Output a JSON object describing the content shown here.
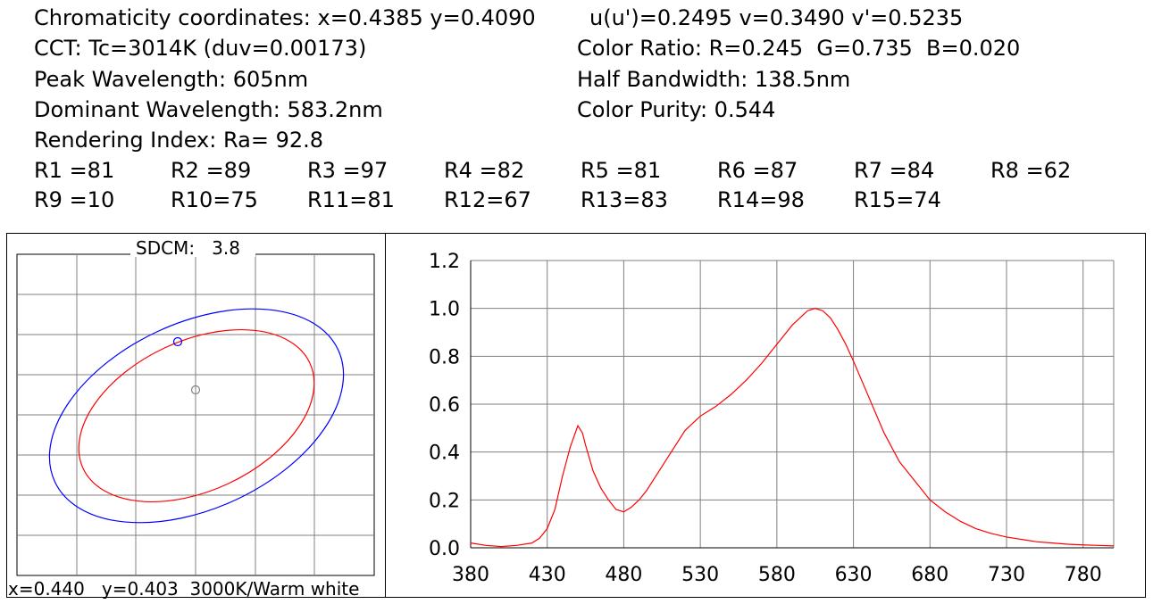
{
  "info": {
    "chromaticity": "Chromaticity coordinates: x=0.4385 y=0.4090",
    "uv": "u(u')=0.2495 v=0.3490 v'=0.5235",
    "cct": "CCT: Tc=3014K (duv=0.00173)",
    "color_ratio": "Color Ratio: R=0.245  G=0.735  B=0.020",
    "peak": "Peak Wavelength: 605nm",
    "half_bw": "Half Bandwidth: 138.5nm",
    "dominant": "Dominant Wavelength: 583.2nm",
    "purity": "Color Purity: 0.544",
    "ra": "Rendering Index: Ra= 92.8"
  },
  "rendering_indices": [
    [
      "R1 =81",
      "R2 =89",
      "R3 =97",
      "R4 =82",
      "R5 =81",
      "R6 =87",
      "R7 =84",
      "R8 =62"
    ],
    [
      "R9 =10",
      "R10=75",
      "R11=81",
      "R12=67",
      "R13=83",
      "R14=98",
      "R15=74"
    ]
  ],
  "ellipse_panel": {
    "sdcm_label": "SDCM:   3.8",
    "footer": "x=0.440   y=0.403  3000K/Warm white"
  },
  "colors": {
    "ellipse_outer": "#0000ff",
    "ellipse_inner": "#ff0000",
    "curve": "#ff0000",
    "grid": "#808080"
  },
  "chart_data": {
    "type": "line",
    "title": "",
    "xlabel": "",
    "ylabel": "",
    "xlim": [
      380,
      800
    ],
    "ylim": [
      0,
      1.2
    ],
    "xticks": [
      380,
      430,
      480,
      530,
      580,
      630,
      680,
      730,
      780
    ],
    "yticks": [
      "0.0",
      "0.2",
      "0.4",
      "0.6",
      "0.8",
      "1.0",
      "1.2"
    ],
    "grid": true,
    "series": [
      {
        "x": [
          380,
          390,
          400,
          410,
          420,
          425,
          430,
          435,
          440,
          445,
          450,
          453,
          455,
          460,
          465,
          470,
          475,
          480,
          485,
          490,
          495,
          500,
          505,
          510,
          515,
          520,
          525,
          530,
          540,
          550,
          560,
          570,
          580,
          590,
          595,
          600,
          605,
          610,
          615,
          620,
          625,
          630,
          640,
          650,
          660,
          670,
          680,
          690,
          700,
          710,
          720,
          730,
          740,
          750,
          760,
          770,
          780,
          790,
          800
        ],
        "y": [
          0.02,
          0.01,
          0.005,
          0.01,
          0.02,
          0.04,
          0.08,
          0.16,
          0.3,
          0.42,
          0.51,
          0.48,
          0.43,
          0.32,
          0.25,
          0.2,
          0.16,
          0.15,
          0.17,
          0.2,
          0.24,
          0.29,
          0.34,
          0.39,
          0.44,
          0.49,
          0.52,
          0.55,
          0.59,
          0.64,
          0.7,
          0.77,
          0.85,
          0.93,
          0.96,
          0.99,
          1.0,
          0.99,
          0.96,
          0.91,
          0.85,
          0.78,
          0.63,
          0.48,
          0.36,
          0.28,
          0.2,
          0.15,
          0.11,
          0.08,
          0.06,
          0.045,
          0.035,
          0.025,
          0.02,
          0.015,
          0.012,
          0.01,
          0.008
        ]
      }
    ]
  }
}
